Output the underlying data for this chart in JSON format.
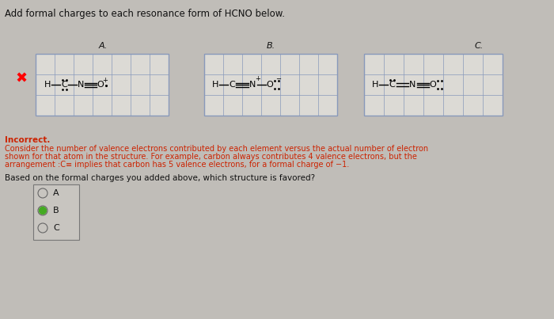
{
  "title": "Add formal charges to each resonance form of HCNO below.",
  "title_fontsize": 8.5,
  "bg_color": "#c0bdb8",
  "section_A_label": "A.",
  "section_B_label": "B.",
  "section_C_label": "C.",
  "incorrect_label": "Incorrect.",
  "explanation_line1": "Consider the number of valence electrons contributed by each element versus the actual number of electron",
  "explanation_line2": "shown for that atom in the structure. For example, carbon always contributes 4 valence electrons, but the",
  "explanation_line3": "arrangement :C≡ implies that carbon has 5 valence electrons, for a formal charge of −1.",
  "question_text": "Based on the formal charges you added above, which structure is favored?",
  "radio_options": [
    "A",
    "B",
    "C"
  ],
  "radio_selected": 1,
  "grid_color": "#8899bb",
  "text_color": "#111111",
  "red_color": "#cc2200"
}
